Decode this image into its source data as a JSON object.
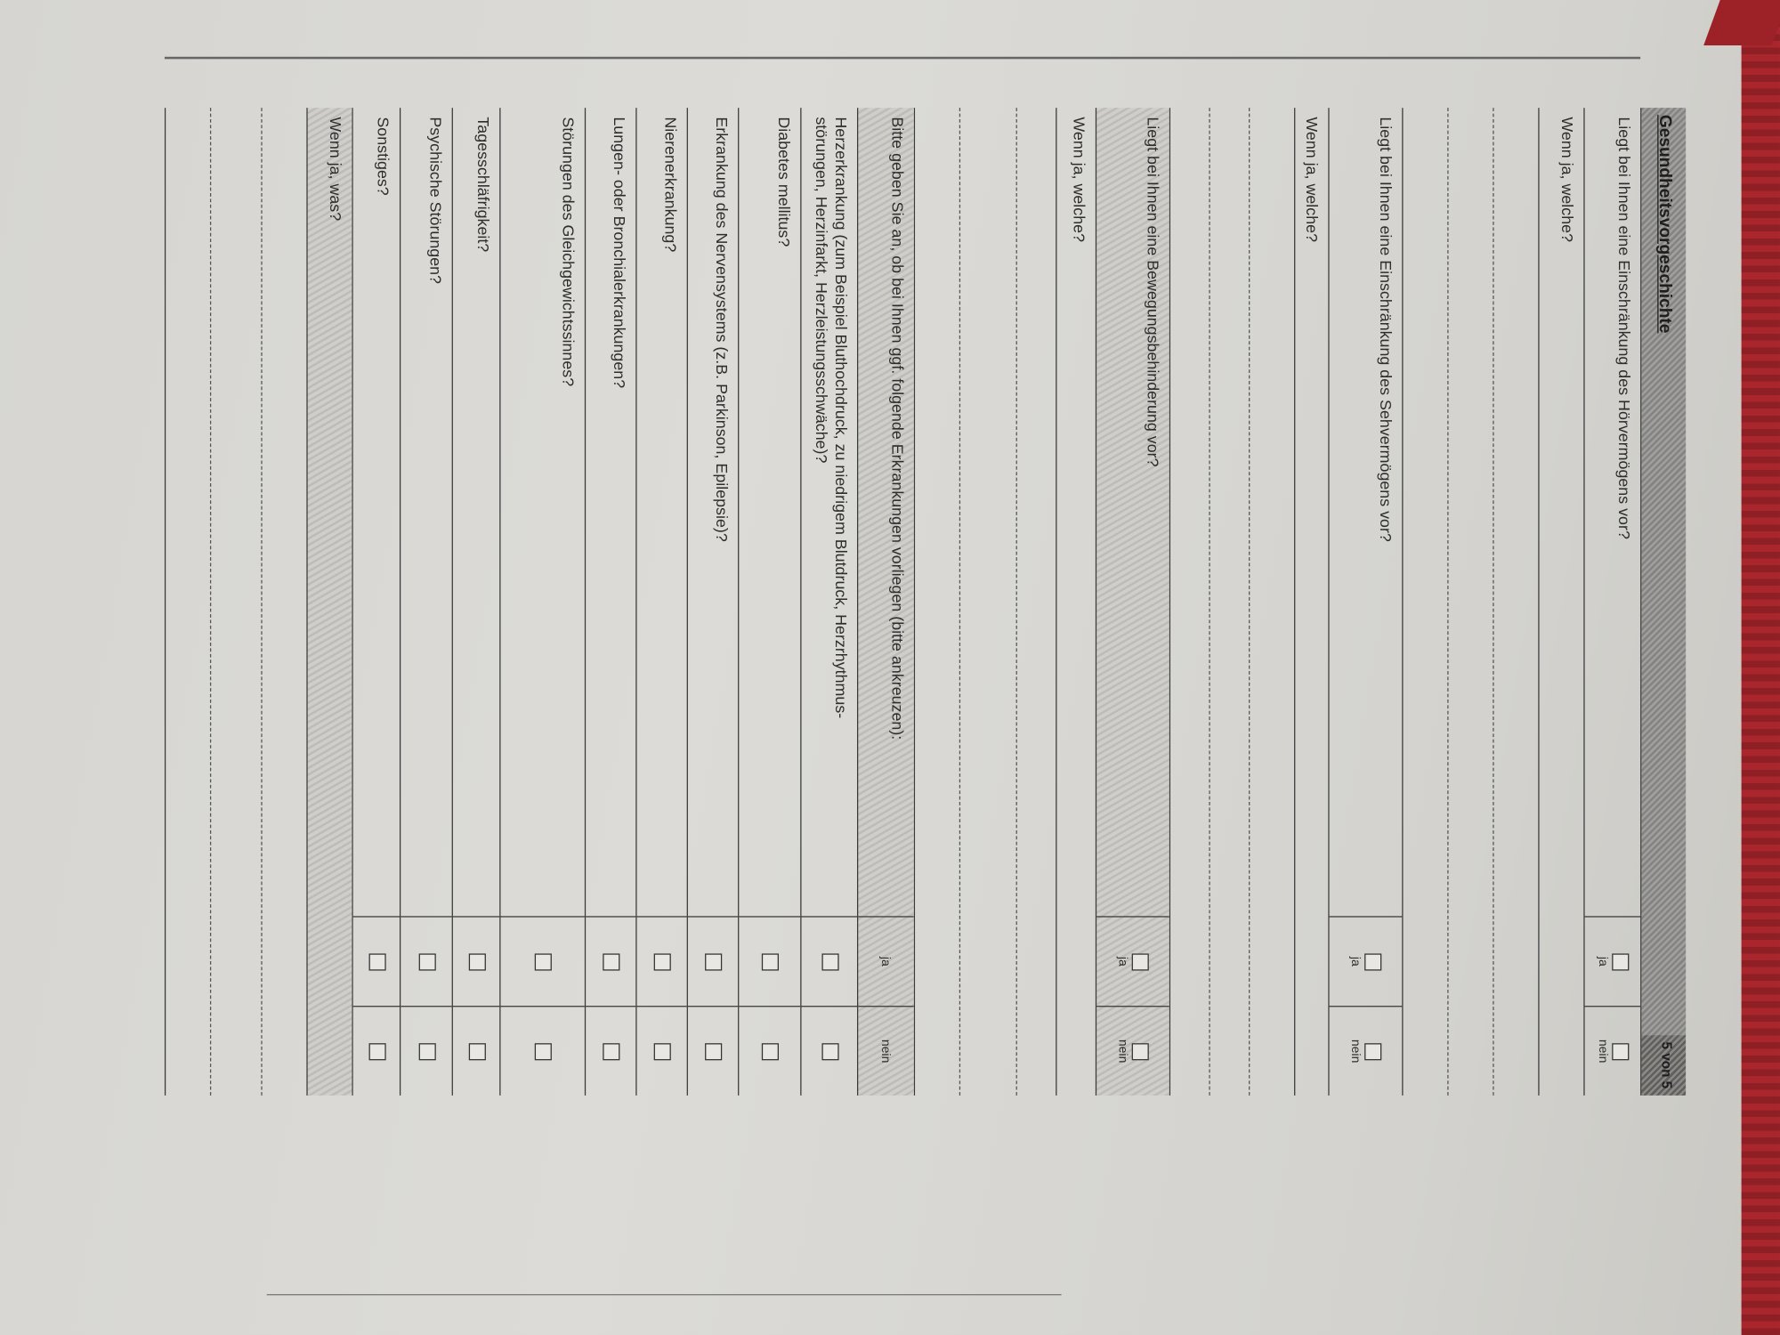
{
  "page": {
    "title": "Gesundheitsvorgeschichte",
    "page_number": "5 von 5"
  },
  "hearing": {
    "question": "Liegt bei Ihnen eine Einschränkung des Hörvermögens vor?",
    "yes": "ja",
    "no": "nein",
    "followup": "Wenn ja, welche?"
  },
  "vision": {
    "question": "Liegt bei Ihnen eine Einschränkung des Sehvermögens vor?",
    "yes": "ja",
    "no": "nein",
    "followup": "Wenn ja, welche?"
  },
  "mobility": {
    "question": "Liegt bei Ihnen eine Bewegungsbehinderung vor?",
    "yes": "ja",
    "no": "nein",
    "followup": "Wenn ja, welche?"
  },
  "conditions": {
    "instruction": "Bitte geben Sie an, ob bei Ihnen ggf. folgende Erkrankungen vorliegen (bitte ankreuzen):",
    "yes": "ja",
    "no": "nein",
    "items": [
      "Herzerkrankung (zum Beispiel Bluthochdruck, zu niedrigem Blutdruck, Herzrhythmus-\nstörungen, Herzinfarkt, Herzleistungsschwäche)?",
      "Diabetes mellitus?",
      "Erkrankung des Nervensystems (z.B. Parkinson, Epilepsie)?",
      "Nierenerkrankung?",
      "Lungen- oder Bronchialerkrankungen?",
      "Störungen des Gleichgewichtssinnes?",
      "Tagesschläfrigkeit?",
      "Psychische Störungen?",
      "Sonstiges?"
    ],
    "followup": "Wenn ja, was?"
  }
}
